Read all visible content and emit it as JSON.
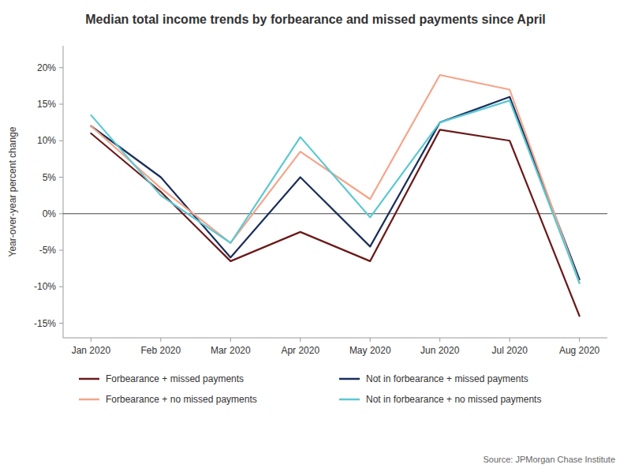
{
  "chart_data": {
    "type": "line",
    "title": "Median total income trends by forbearance and missed payments since April",
    "ylabel": "Year-over-year percent change",
    "annotations": [
      "Source: JPMorgan Chase Institute"
    ],
    "categories": [
      "Jan 2020",
      "Feb 2020",
      "Mar 2020",
      "Apr 2020",
      "May 2020",
      "Jun 2020",
      "Jul 2020",
      "Aug 2020"
    ],
    "series": [
      {
        "name": "Forbearance + missed payments",
        "color": "#6B1A1A",
        "values": [
          11,
          3,
          -6.5,
          -2.5,
          -6.5,
          11.5,
          10,
          -14
        ]
      },
      {
        "name": "Not in forbearance + missed payments",
        "color": "#1A2E5A",
        "values": [
          12,
          5,
          -6,
          5,
          -4.5,
          12.5,
          16,
          -9
        ]
      },
      {
        "name": "Forbearance + no missed payments",
        "color": "#F4A58A",
        "values": [
          12,
          3.5,
          -4,
          8.5,
          2,
          19,
          17,
          -9.5
        ]
      },
      {
        "name": "Not in forbearance + no missed payments",
        "color": "#5BC8D4",
        "values": [
          13.5,
          2.5,
          -4,
          10.5,
          -0.5,
          12.5,
          15.5,
          -9.5
        ]
      }
    ],
    "ylim": [
      -17,
      23
    ],
    "yticks": [
      {
        "value": -15,
        "label": "-15%"
      },
      {
        "value": -10,
        "label": "-10%"
      },
      {
        "value": -5,
        "label": "-5%"
      },
      {
        "value": 0,
        "label": "0%"
      },
      {
        "value": 5,
        "label": "5%"
      },
      {
        "value": 10,
        "label": "10%"
      },
      {
        "value": 15,
        "label": "15%"
      },
      {
        "value": 20,
        "label": "20%"
      }
    ],
    "hline": {
      "y": 0,
      "color": "#444444"
    },
    "grid": false,
    "legend": "bottom"
  }
}
